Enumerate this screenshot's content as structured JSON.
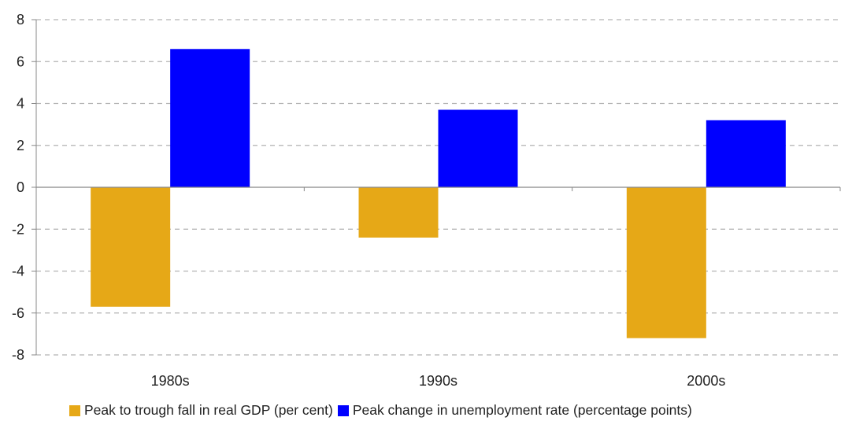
{
  "chart_data": {
    "type": "bar",
    "categories": [
      "1980s",
      "1990s",
      "2000s"
    ],
    "series": [
      {
        "name": "Peak to trough fall in real GDP (per cent)",
        "color": "#E6A817",
        "values": [
          -5.7,
          -2.4,
          -7.2
        ]
      },
      {
        "name": "Peak change in unemployment rate (percentage points)",
        "color": "#0000FF",
        "values": [
          6.6,
          3.7,
          3.2
        ]
      }
    ],
    "ylim": [
      -8,
      8
    ],
    "yticks": [
      8,
      6,
      4,
      2,
      0,
      -2,
      -4,
      -6,
      -8
    ],
    "grid": true,
    "legend": "bottom",
    "xlabel": "",
    "ylabel": ""
  }
}
